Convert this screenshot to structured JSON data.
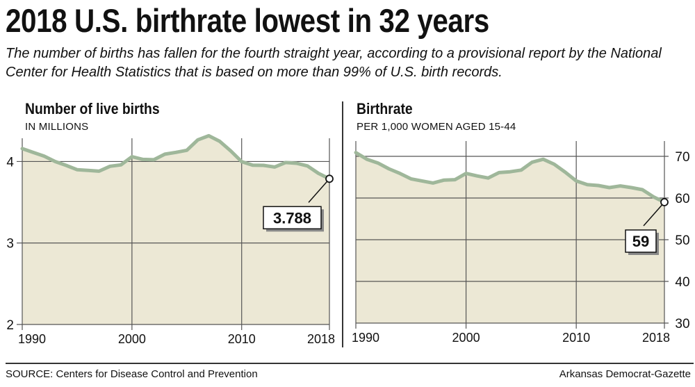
{
  "headline": "2018 U.S. birthrate lowest in 32 years",
  "subhead": "The number of births has fallen for the fourth straight year, according to a provisional report by the National Center for Health Statistics that is based on more than 99% of U.S. birth records.",
  "source": "SOURCE: Centers for Disease Control and Prevention",
  "credit": "Arkansas Democrat-Gazette",
  "colors": {
    "line": "#9fb79a",
    "fill": "#ece8d5",
    "grid": "#555555",
    "text": "#111111"
  },
  "chart_data": [
    {
      "type": "area",
      "title": "Number of live births",
      "subtitle": "IN MILLIONS",
      "x": [
        1990,
        1991,
        1992,
        1993,
        1994,
        1995,
        1996,
        1997,
        1998,
        1999,
        2000,
        2001,
        2002,
        2003,
        2004,
        2005,
        2006,
        2007,
        2008,
        2009,
        2010,
        2011,
        2012,
        2013,
        2014,
        2015,
        2016,
        2017,
        2018
      ],
      "y": [
        4.158,
        4.111,
        4.065,
        4.0,
        3.953,
        3.9,
        3.891,
        3.881,
        3.942,
        3.959,
        4.059,
        4.026,
        4.022,
        4.09,
        4.112,
        4.138,
        4.266,
        4.316,
        4.248,
        4.131,
        3.999,
        3.954,
        3.953,
        3.932,
        3.988,
        3.978,
        3.946,
        3.855,
        3.788
      ],
      "xlim": [
        1990,
        2018
      ],
      "ylim": [
        2,
        4.2
      ],
      "xticks": [
        "1990",
        "2000",
        "2010",
        "2018"
      ],
      "yticks": [
        "2",
        "3",
        "4"
      ],
      "axis_side": "left",
      "callout": {
        "x": 2018,
        "y": 3.788,
        "label": "3.788"
      }
    },
    {
      "type": "area",
      "title": "Birthrate",
      "subtitle": "PER 1,000 WOMEN AGED 15-44",
      "x": [
        1990,
        1991,
        1992,
        1993,
        1994,
        1995,
        1996,
        1997,
        1998,
        1999,
        2000,
        2001,
        2002,
        2003,
        2004,
        2005,
        2006,
        2007,
        2008,
        2009,
        2010,
        2011,
        2012,
        2013,
        2014,
        2015,
        2016,
        2017,
        2018
      ],
      "y": [
        70.9,
        69.3,
        68.4,
        67.0,
        65.9,
        64.6,
        64.1,
        63.6,
        64.3,
        64.4,
        65.9,
        65.3,
        64.8,
        66.1,
        66.3,
        66.7,
        68.6,
        69.3,
        68.1,
        66.2,
        64.1,
        63.2,
        63.0,
        62.5,
        62.9,
        62.5,
        62.0,
        60.3,
        59.0
      ],
      "xlim": [
        1990,
        2018
      ],
      "ylim": [
        30,
        72
      ],
      "xticks": [
        "1990",
        "2000",
        "2010",
        "2018"
      ],
      "yticks": [
        "30",
        "40",
        "50",
        "60",
        "70"
      ],
      "axis_side": "right",
      "callout": {
        "x": 2018,
        "y": 59,
        "label": "59"
      }
    }
  ]
}
